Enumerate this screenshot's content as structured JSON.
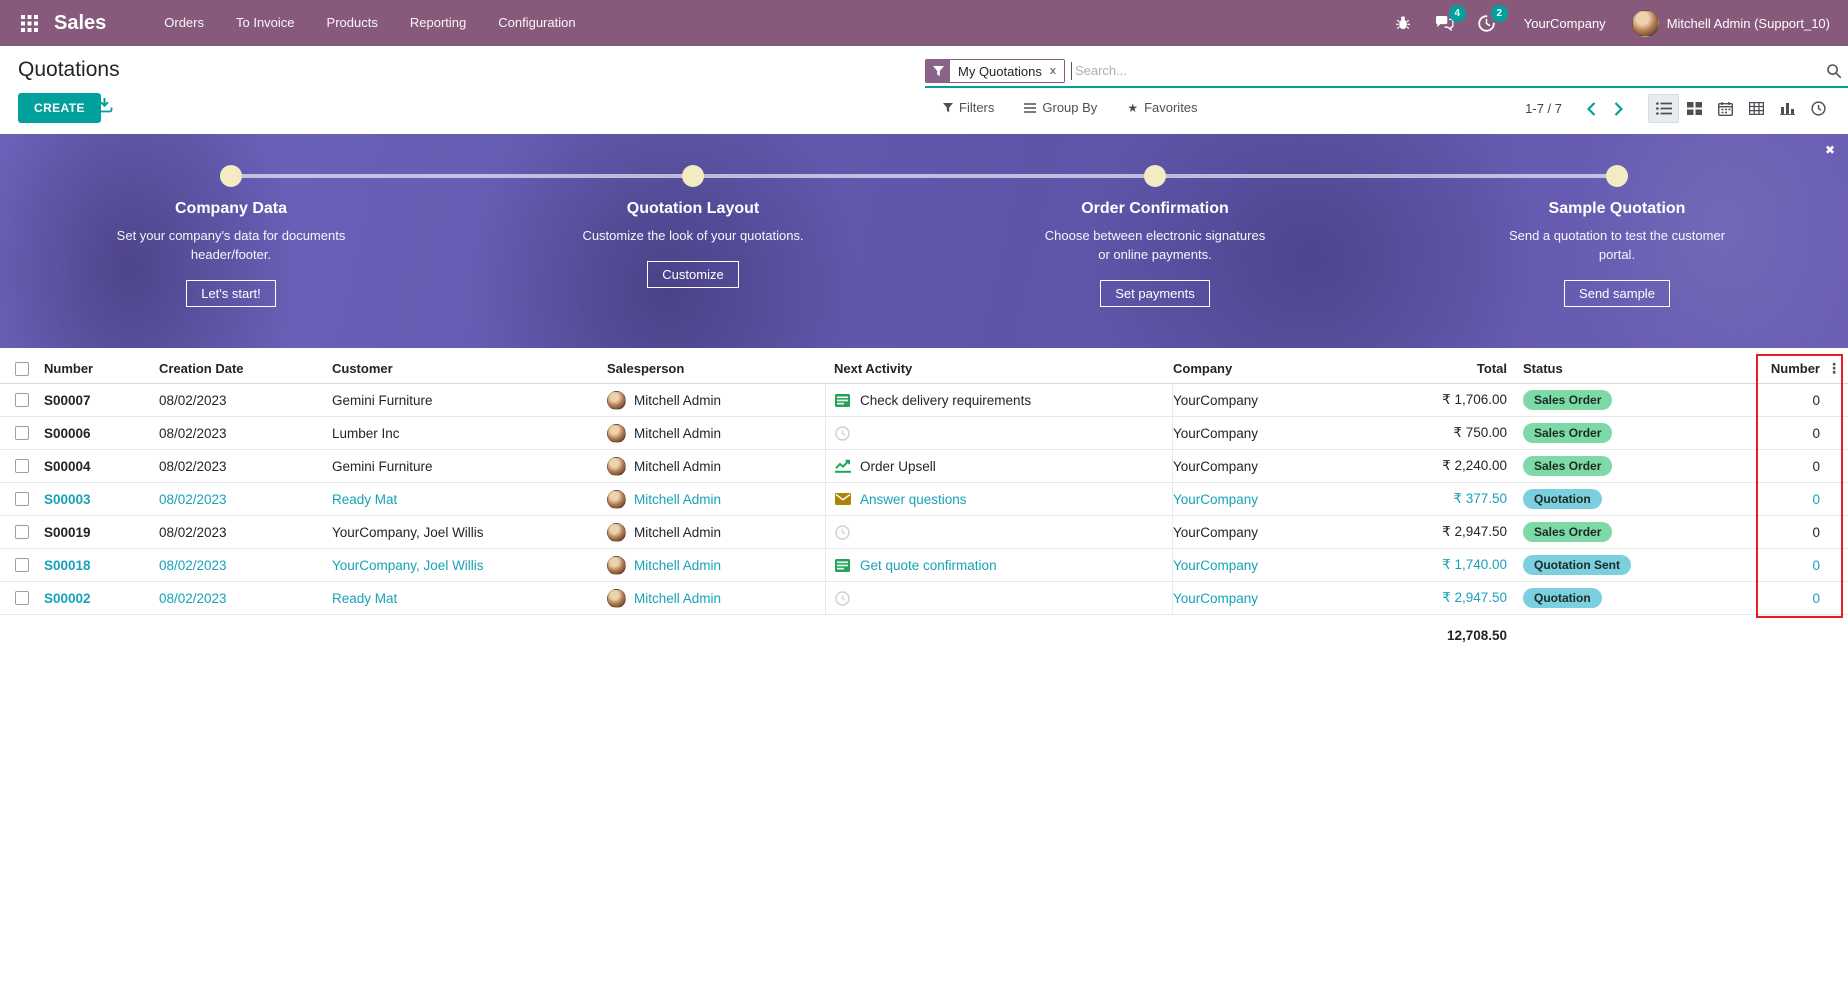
{
  "nav": {
    "app_name": "Sales",
    "menus": [
      "Orders",
      "To Invoice",
      "Products",
      "Reporting",
      "Configuration"
    ],
    "messages_badge": "4",
    "activities_badge": "2",
    "company": "YourCompany",
    "user": "Mitchell Admin (Support_10)"
  },
  "page": {
    "title": "Quotations",
    "create_label": "CREATE"
  },
  "search": {
    "facet_label": "My Quotations",
    "placeholder": "Search...",
    "filters": "Filters",
    "group_by": "Group By",
    "favorites": "Favorites",
    "pager": "1-7 / 7",
    "close_facet": "x"
  },
  "banner": {
    "close": "✖",
    "steps": [
      {
        "title": "Company Data",
        "desc": "Set your company's data for documents header/footer.",
        "button": "Let's start!"
      },
      {
        "title": "Quotation Layout",
        "desc": "Customize the look of your quotations.",
        "button": "Customize"
      },
      {
        "title": "Order Confirmation",
        "desc": "Choose between electronic signatures or online payments.",
        "button": "Set payments"
      },
      {
        "title": "Sample Quotation",
        "desc": "Send a quotation to test the customer portal.",
        "button": "Send sample"
      }
    ]
  },
  "table": {
    "columns": [
      "Number",
      "Creation Date",
      "Customer",
      "Salesperson",
      "Next Activity",
      "Company",
      "Total",
      "Status",
      "Number"
    ],
    "rows": [
      {
        "number": "S00007",
        "date": "08/02/2023",
        "customer": "Gemini Furniture",
        "salesperson": "Mitchell Admin",
        "activity": "Check delivery requirements",
        "activity_icon": "tasks",
        "company": "YourCompany",
        "total": "₹ 1,706.00",
        "status": "Sales Order",
        "status_type": "success",
        "count": "0",
        "style": "normal"
      },
      {
        "number": "S00006",
        "date": "08/02/2023",
        "customer": "Lumber Inc",
        "salesperson": "Mitchell Admin",
        "activity": "",
        "activity_icon": "clock",
        "company": "YourCompany",
        "total": "₹ 750.00",
        "status": "Sales Order",
        "status_type": "success",
        "count": "0",
        "style": "normal"
      },
      {
        "number": "S00004",
        "date": "08/02/2023",
        "customer": "Gemini Furniture",
        "salesperson": "Mitchell Admin",
        "activity": "Order Upsell",
        "activity_icon": "chart",
        "company": "YourCompany",
        "total": "₹ 2,240.00",
        "status": "Sales Order",
        "status_type": "success",
        "count": "0",
        "style": "normal"
      },
      {
        "number": "S00003",
        "date": "08/02/2023",
        "customer": "Ready Mat",
        "salesperson": "Mitchell Admin",
        "activity": "Answer questions",
        "activity_icon": "envelope",
        "company": "YourCompany",
        "total": "₹ 377.50",
        "status": "Quotation",
        "status_type": "info",
        "count": "0",
        "style": "info"
      },
      {
        "number": "S00019",
        "date": "08/02/2023",
        "customer": "YourCompany, Joel Willis",
        "salesperson": "Mitchell Admin",
        "activity": "",
        "activity_icon": "clock",
        "company": "YourCompany",
        "total": "₹ 2,947.50",
        "status": "Sales Order",
        "status_type": "success",
        "count": "0",
        "style": "normal"
      },
      {
        "number": "S00018",
        "date": "08/02/2023",
        "customer": "YourCompany, Joel Willis",
        "salesperson": "Mitchell Admin",
        "activity": "Get quote confirmation",
        "activity_icon": "tasks",
        "company": "YourCompany",
        "total": "₹ 1,740.00",
        "status": "Quotation Sent",
        "status_type": "info",
        "count": "0",
        "style": "info"
      },
      {
        "number": "S00002",
        "date": "08/02/2023",
        "customer": "Ready Mat",
        "salesperson": "Mitchell Admin",
        "activity": "",
        "activity_icon": "clock",
        "company": "YourCompany",
        "total": "₹ 2,947.50",
        "status": "Quotation",
        "status_type": "info",
        "count": "0",
        "style": "info"
      }
    ],
    "total": "12,708.50"
  },
  "colors": {
    "nav_bg": "#875A7B",
    "accent": "#00A09D",
    "info_text": "#17a2b8",
    "badge_success": "#7dd9a6",
    "badge_info": "#7ad0de",
    "highlight": "#ec1c24",
    "banner_bg": "#645CAE",
    "step_dot": "#F3ECC2"
  }
}
